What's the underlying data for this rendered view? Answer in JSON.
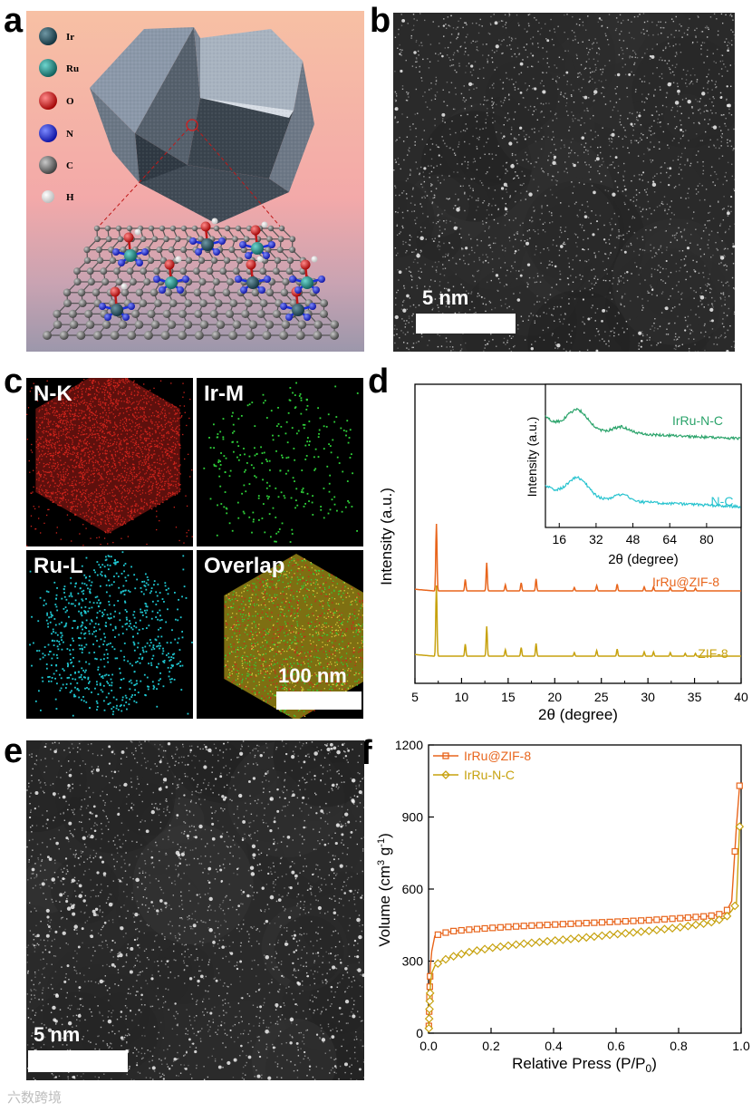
{
  "panel_labels": {
    "a": "a",
    "b": "b",
    "c": "c",
    "d": "d",
    "e": "e",
    "f": "f"
  },
  "panel_a": {
    "legend": [
      {
        "label": "Ir",
        "color": "#1f4a57"
      },
      {
        "label": "Ru",
        "color": "#1b8a84"
      },
      {
        "label": "O",
        "color": "#e01e1e"
      },
      {
        "label": "N",
        "color": "#1a2fe0"
      },
      {
        "label": "C",
        "color": "#6e6e6e"
      },
      {
        "label": "H",
        "color": "#f2f2f2"
      }
    ]
  },
  "panel_b": {
    "scale_label": "5 nm"
  },
  "panel_c": {
    "maps": [
      {
        "label": "N-K",
        "color": "#d0241c"
      },
      {
        "label": "Ir-M",
        "color": "#2fd23a"
      },
      {
        "label": "Ru-L",
        "color": "#1fc8d2"
      },
      {
        "label": "Overlap",
        "color": "#c9b82a"
      }
    ],
    "scale_label": "100 nm"
  },
  "panel_e": {
    "scale_label": "5 nm"
  },
  "watermark": "六数跨境",
  "chart_data": [
    {
      "type": "line",
      "panel": "d",
      "xlabel": "2θ (degree)",
      "ylabel": "Intensity (a.u.)",
      "xlim": [
        5,
        40
      ],
      "xticks": [
        "5",
        "10",
        "15",
        "20",
        "25",
        "30",
        "35",
        "40"
      ],
      "series": [
        {
          "name": "IrRu@ZIF-8",
          "color": "#e8651c",
          "peaks": [
            [
              7.3,
              1.0
            ],
            [
              10.4,
              0.17
            ],
            [
              12.7,
              0.42
            ],
            [
              14.7,
              0.09
            ],
            [
              16.4,
              0.12
            ],
            [
              18.0,
              0.18
            ],
            [
              22.1,
              0.05
            ],
            [
              24.5,
              0.08
            ],
            [
              26.7,
              0.1
            ],
            [
              29.6,
              0.06
            ],
            [
              30.6,
              0.06
            ],
            [
              32.4,
              0.05
            ],
            [
              34.0,
              0.04
            ],
            [
              35.1,
              0.04
            ]
          ]
        },
        {
          "name": "ZIF-8",
          "color": "#c7a20f",
          "peaks": [
            [
              7.3,
              1.0
            ],
            [
              10.4,
              0.17
            ],
            [
              12.7,
              0.42
            ],
            [
              14.7,
              0.09
            ],
            [
              16.4,
              0.12
            ],
            [
              18.0,
              0.18
            ],
            [
              22.1,
              0.05
            ],
            [
              24.5,
              0.08
            ],
            [
              26.7,
              0.1
            ],
            [
              29.6,
              0.06
            ],
            [
              30.6,
              0.06
            ],
            [
              32.4,
              0.05
            ],
            [
              34.0,
              0.04
            ],
            [
              35.1,
              0.04
            ]
          ]
        }
      ],
      "inset": {
        "xlabel": "2θ (degree)",
        "ylabel": "Intensity (a.u.)",
        "xlim": [
          10,
          95
        ],
        "xticks": [
          "16",
          "32",
          "48",
          "64",
          "80"
        ],
        "xtick_values": [
          16,
          32,
          48,
          64,
          80
        ],
        "series": [
          {
            "name": "IrRu-N-C",
            "color": "#2aa36a"
          },
          {
            "name": "N-C",
            "color": "#27c3cf"
          }
        ]
      }
    },
    {
      "type": "line",
      "panel": "f",
      "xlabel": "Relative Press (P/P",
      "xlabel_sub": "0",
      "xlabel_end": ")",
      "ylabel": "Volume (cm",
      "ylabel_sup": "3",
      "ylabel_mid": " g",
      "ylabel_sup2": "-1",
      "ylabel_end": ")",
      "xlim": [
        0,
        1.0
      ],
      "ylim": [
        0,
        1200
      ],
      "xticks": [
        "0.0",
        "0.2",
        "0.4",
        "0.6",
        "0.8",
        "1.0"
      ],
      "yticks": [
        "0",
        "300",
        "600",
        "900",
        "1200"
      ],
      "series": [
        {
          "name": "IrRu@ZIF-8",
          "color": "#e8651c",
          "marker": "square",
          "x": [
            0.001,
            0.003,
            0.006,
            0.01,
            0.02,
            0.04,
            0.08,
            0.12,
            0.2,
            0.3,
            0.4,
            0.5,
            0.6,
            0.7,
            0.8,
            0.9,
            0.95,
            0.97,
            0.985,
            0.995
          ],
          "y": [
            30,
            150,
            280,
            340,
            405,
            415,
            425,
            430,
            438,
            446,
            452,
            458,
            464,
            470,
            478,
            488,
            500,
            550,
            860,
            1030
          ]
        },
        {
          "name": "IrRu-N-C",
          "color": "#c7a20f",
          "marker": "diamond",
          "x": [
            0.001,
            0.003,
            0.006,
            0.01,
            0.02,
            0.04,
            0.08,
            0.12,
            0.2,
            0.3,
            0.4,
            0.5,
            0.6,
            0.7,
            0.8,
            0.9,
            0.95,
            0.97,
            0.985,
            0.995
          ],
          "y": [
            20,
            100,
            200,
            250,
            280,
            300,
            320,
            335,
            355,
            372,
            385,
            398,
            412,
            425,
            440,
            460,
            480,
            510,
            540,
            860
          ]
        }
      ]
    }
  ]
}
